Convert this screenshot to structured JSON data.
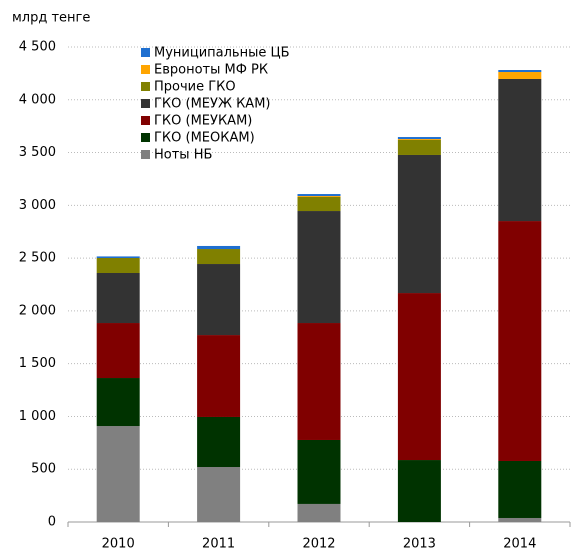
{
  "chart_data": {
    "type": "stacked_bar",
    "y_label": "млрд тенге",
    "categories": [
      "2010",
      "2011",
      "2012",
      "2013",
      "2014"
    ],
    "series": [
      {
        "name": "Ноты НБ",
        "color": "#808080",
        "values": [
          909,
          521,
          171,
          0,
          38
        ]
      },
      {
        "name": "ГКО (МЕОКАМ)",
        "color": "#003300",
        "values": [
          455,
          474,
          606,
          587,
          540
        ]
      },
      {
        "name": "ГКО (МЕУКАМ)",
        "color": "#800000",
        "values": [
          521,
          776,
          1108,
          1582,
          2273
        ]
      },
      {
        "name": "ГКО (МЕУЖ КАМ)",
        "color": "#333333",
        "values": [
          474,
          673,
          1061,
          1308,
          1346
        ]
      },
      {
        "name": "Прочие ГКО",
        "color": "#808000",
        "values": [
          142,
          142,
          133,
          142,
          0
        ]
      },
      {
        "name": "Евроноты МФ РК",
        "color": "#ffa500",
        "values": [
          0,
          0,
          9,
          9,
          66
        ]
      },
      {
        "name": "Муниципальные ЦБ",
        "color": "#1f6fd0",
        "values": [
          15,
          29,
          19,
          19,
          19
        ]
      }
    ],
    "ylim": [
      0,
      4500
    ],
    "yticks": [
      0,
      500,
      {
        "value": 1000,
        "label": "1 000"
      },
      {
        "value": 1500,
        "label": "1 500"
      },
      {
        "value": 2000,
        "label": "2 000"
      },
      {
        "value": 2500,
        "label": "2 500"
      },
      {
        "value": 3000,
        "label": "3 000"
      },
      {
        "value": 3500,
        "label": "3 500"
      },
      {
        "value": 4000,
        "label": "4 000"
      },
      {
        "value": 4500,
        "label": "4 500"
      }
    ],
    "grid": true
  }
}
